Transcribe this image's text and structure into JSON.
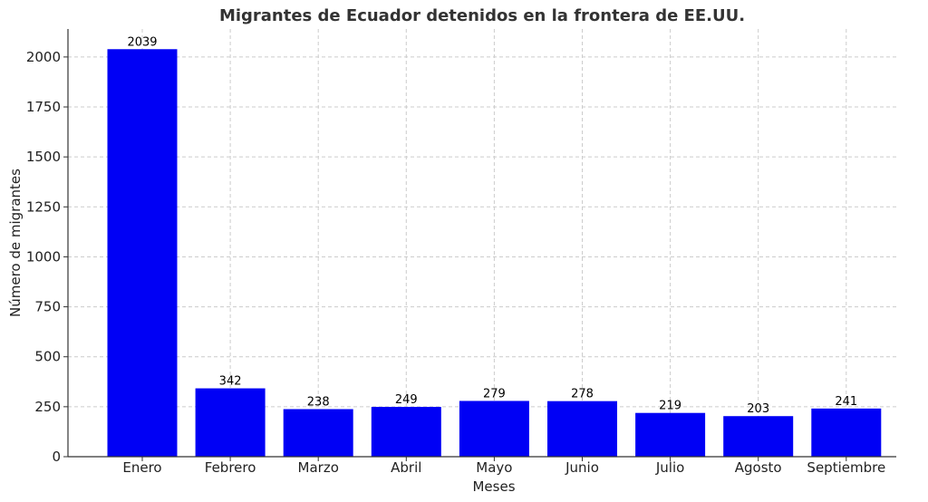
{
  "chart_data": {
    "type": "bar",
    "title": "Migrantes de Ecuador detenidos en la frontera de EE.UU.",
    "xlabel": "Meses",
    "ylabel": "Número de migrantes",
    "categories": [
      "Enero",
      "Febrero",
      "Marzo",
      "Abril",
      "Mayo",
      "Junio",
      "Julio",
      "Agosto",
      "Septiembre"
    ],
    "values": [
      2039,
      342,
      238,
      249,
      279,
      278,
      219,
      203,
      241
    ],
    "ylim": [
      0,
      2140
    ],
    "yticks": [
      0,
      250,
      500,
      750,
      1000,
      1250,
      1500,
      1750,
      2000
    ],
    "grid": true,
    "bar_color": "#0000f5",
    "grid_color": "#cccccc"
  }
}
